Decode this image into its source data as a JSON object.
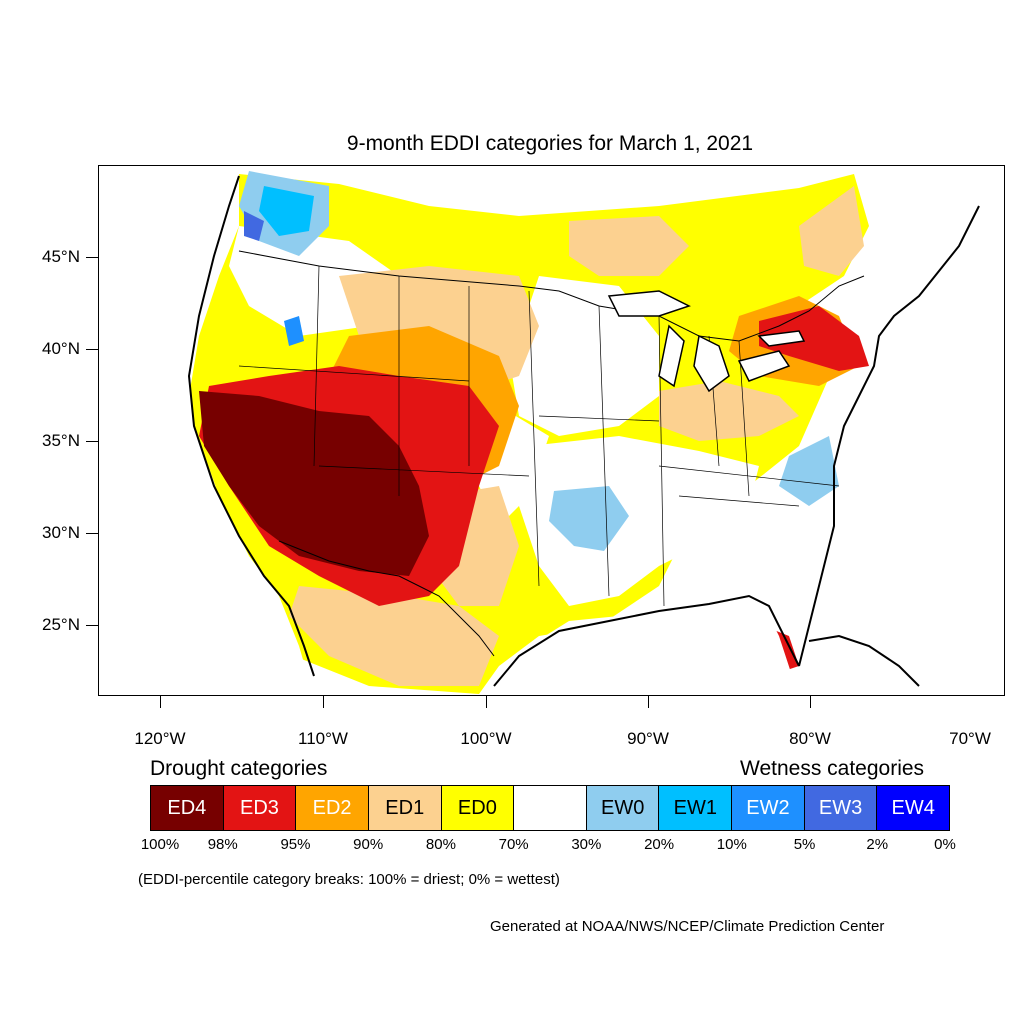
{
  "title": "9-month EDDI categories for March 1, 2021",
  "y_axis": {
    "ticks": [
      "45°N",
      "40°N",
      "35°N",
      "30°N",
      "25°N"
    ]
  },
  "x_axis": {
    "ticks": [
      "120°W",
      "110°W",
      "100°W",
      "90°W",
      "80°W",
      "70°W"
    ]
  },
  "legend": {
    "drought_label": "Drought categories",
    "wetness_label": "Wetness categories",
    "categories": [
      {
        "label": "ED4",
        "color": "#770000",
        "text_color": "#ffffff"
      },
      {
        "label": "ED3",
        "color": "#e31414",
        "text_color": "#ffffff"
      },
      {
        "label": "ED2",
        "color": "#ffa500",
        "text_color": "#ffffff"
      },
      {
        "label": "ED1",
        "color": "#fcd190",
        "text_color": "#000000"
      },
      {
        "label": "ED0",
        "color": "#ffff00",
        "text_color": "#000000"
      },
      {
        "label": "",
        "color": "#ffffff",
        "text_color": "#000000"
      },
      {
        "label": "EW0",
        "color": "#8fcdef",
        "text_color": "#000000"
      },
      {
        "label": "EW1",
        "color": "#00bfff",
        "text_color": "#000000"
      },
      {
        "label": "EW2",
        "color": "#1e90ff",
        "text_color": "#ffffff"
      },
      {
        "label": "EW3",
        "color": "#4169e1",
        "text_color": "#ffffff"
      },
      {
        "label": "EW4",
        "color": "#0000ff",
        "text_color": "#ffffff"
      }
    ],
    "breaks": [
      "100%",
      "98%",
      "95%",
      "90%",
      "80%",
      "70%",
      "30%",
      "20%",
      "10%",
      "5%",
      "2%",
      "0%"
    ],
    "note": "(EDDI-percentile category breaks: 100% = driest; 0% = wettest)"
  },
  "credit": "Generated at NOAA/NWS/NCEP/Climate Prediction Center",
  "map_colors": {
    "ED4": "#770000",
    "ED3": "#e31414",
    "ED2": "#ffa500",
    "ED1": "#fcd190",
    "ED0": "#ffff00",
    "EW0": "#8fcdef",
    "EW1": "#00bfff",
    "EW2": "#1e90ff",
    "EW3": "#4169e1",
    "EW4": "#0000ff"
  }
}
